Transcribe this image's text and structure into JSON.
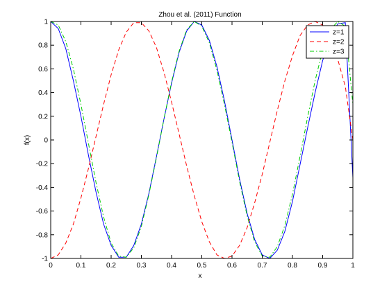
{
  "chart_data": {
    "type": "line",
    "title": "Zhou et al. (2011) Function",
    "xlabel": "x",
    "ylabel": "f(x)",
    "xlim": [
      0,
      1
    ],
    "ylim": [
      -1,
      1
    ],
    "x_ticks": [
      "0",
      "0.1",
      "0.2",
      "0.3",
      "0.4",
      "0.5",
      "0.6",
      "0.7",
      "0.8",
      "0.9",
      "1"
    ],
    "y_ticks": [
      "1",
      "0.8",
      "0.6",
      "0.4",
      "0.2",
      "0",
      "-0.2",
      "-0.4",
      "-0.6",
      "-0.8",
      "-1"
    ],
    "grid": false,
    "legend_position": "top-right",
    "x": [
      0,
      0.025,
      0.05,
      0.075,
      0.1,
      0.125,
      0.15,
      0.175,
      0.2,
      0.225,
      0.25,
      0.275,
      0.3,
      0.325,
      0.35,
      0.375,
      0.4,
      0.425,
      0.45,
      0.475,
      0.5,
      0.525,
      0.55,
      0.575,
      0.6,
      0.625,
      0.65,
      0.675,
      0.7,
      0.725,
      0.75,
      0.775,
      0.8,
      0.825,
      0.85,
      0.875,
      0.9,
      0.925,
      0.95,
      0.975,
      1
    ],
    "series": [
      {
        "name": "z=1",
        "color": "#0000ff",
        "dash": "solid",
        "values": [
          1,
          0.94,
          0.77,
          0.5,
          0.2,
          -0.13,
          -0.44,
          -0.71,
          -0.89,
          -0.99,
          -0.99,
          -0.89,
          -0.71,
          -0.45,
          -0.14,
          0.18,
          0.48,
          0.74,
          0.92,
          1,
          0.97,
          0.84,
          0.62,
          0.33,
          0.0,
          -0.33,
          -0.62,
          -0.84,
          -0.97,
          -1,
          -0.93,
          -0.77,
          -0.52,
          -0.21,
          0.1,
          0.4,
          0.67,
          0.87,
          0.98,
          0.99,
          -0.32
        ]
      },
      {
        "name": "z=2",
        "color": "#ff0000",
        "dash": "dashed",
        "values": [
          -1,
          -0.97,
          -0.87,
          -0.71,
          -0.49,
          -0.24,
          0.03,
          0.3,
          0.55,
          0.76,
          0.91,
          0.99,
          0.99,
          0.92,
          0.78,
          0.57,
          0.32,
          0.05,
          -0.22,
          -0.47,
          -0.69,
          -0.86,
          -0.97,
          -1,
          -0.98,
          -0.89,
          -0.74,
          -0.53,
          -0.29,
          -0.02,
          0.25,
          0.5,
          0.71,
          0.88,
          0.97,
          1,
          0.97,
          0.86,
          0.68,
          0.45,
          0.0
        ]
      },
      {
        "name": "z=3",
        "color": "#00cc00",
        "dash": "dashdot",
        "values": [
          1,
          0.97,
          0.83,
          0.6,
          0.3,
          -0.03,
          -0.36,
          -0.65,
          -0.87,
          -0.98,
          -0.99,
          -0.91,
          -0.73,
          -0.46,
          -0.15,
          0.18,
          0.49,
          0.75,
          0.93,
          1,
          0.96,
          0.82,
          0.59,
          0.3,
          -0.02,
          -0.35,
          -0.64,
          -0.86,
          -0.98,
          -0.99,
          -0.9,
          -0.72,
          -0.46,
          -0.14,
          0.19,
          0.5,
          0.76,
          0.93,
          1,
          0.96,
          0.3
        ]
      }
    ]
  }
}
